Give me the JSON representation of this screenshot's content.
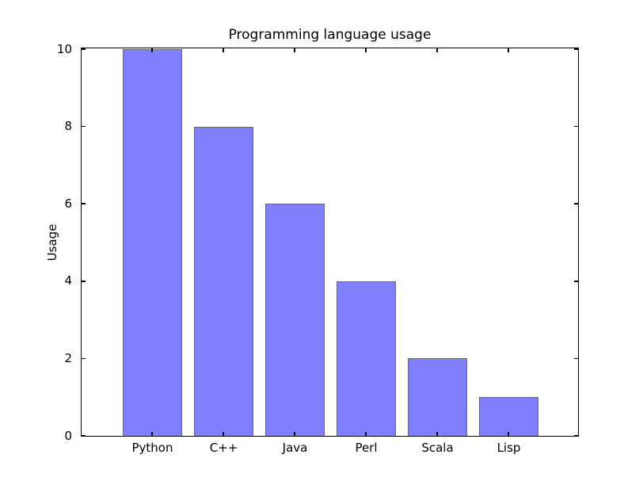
{
  "figure": {
    "background": "#ffffff"
  },
  "chart_data": {
    "type": "bar",
    "title": "Programming language usage",
    "xlabel": "",
    "ylabel": "Usage",
    "categories": [
      "Python",
      "C++",
      "Java",
      "Perl",
      "Scala",
      "Lisp"
    ],
    "values": [
      10,
      8,
      6,
      4,
      2,
      1
    ],
    "ylim": [
      0,
      10
    ],
    "yticks": [
      0,
      2,
      4,
      6,
      8,
      10
    ],
    "grid": false,
    "legend": null,
    "tick_direction": "in",
    "bar_color": "#7f7fff",
    "bar_edge_color": "#666666",
    "axis_color": "#000000",
    "text_color": "#000000"
  }
}
